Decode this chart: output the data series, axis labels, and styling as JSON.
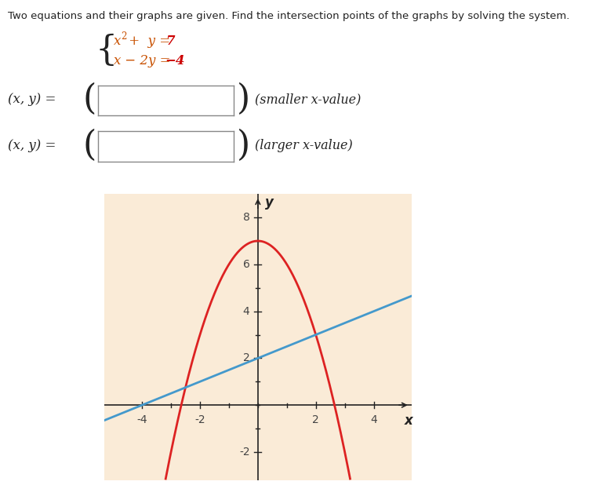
{
  "title_text": "Two equations and their graphs are given. Find the intersection points of the graphs by solving the system.",
  "graph_bg_color": "#faebd7",
  "parabola_color": "#dd2222",
  "line_color": "#4499cc",
  "axis_color": "#222222",
  "tick_color": "#444444",
  "text_color_black": "#222222",
  "text_color_eq": "#c85000",
  "text_color_red": "#cc0000",
  "label_smaller": "(smaller x-value)",
  "label_larger": "(larger x-value)",
  "xmin": -5.3,
  "xmax": 5.3,
  "ymin": -3.2,
  "ymax": 9.0,
  "xticks": [
    -4,
    -2,
    2,
    4
  ],
  "yticks": [
    -2,
    2,
    4,
    6,
    8
  ],
  "line_width": 2.0
}
